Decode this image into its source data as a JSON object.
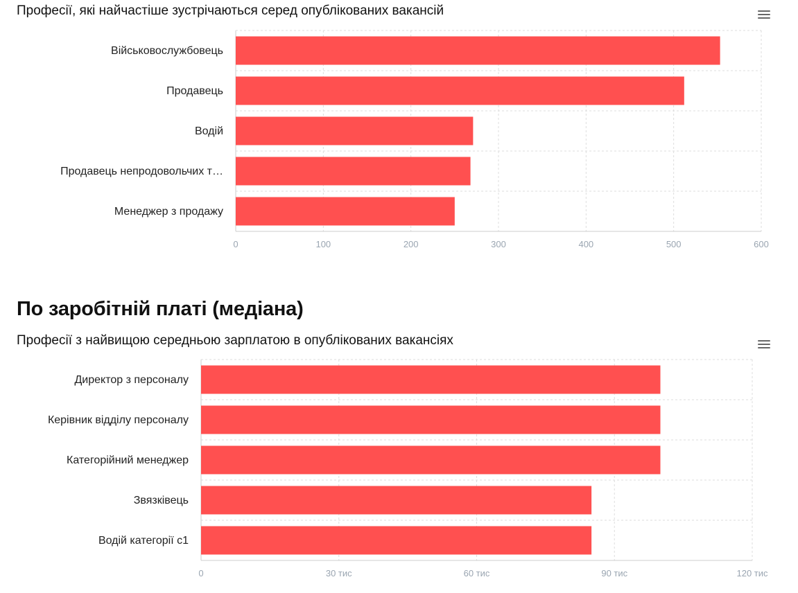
{
  "charts": {
    "occupations": {
      "title": "Професії, які найчастіше зустрічаються серед опублікованих вакансій",
      "menu_icon": "hamburger-menu-icon"
    },
    "salary": {
      "section_heading": "По заробітній платі (медіана)",
      "title": "Професії з найвищою середньою зарплатою в опублікованих вакансіях",
      "menu_icon": "hamburger-menu-icon"
    }
  },
  "colors": {
    "bar": "#FF5050",
    "grid": "#dddddd",
    "tick": "#9aa5b1"
  },
  "chart_data": [
    {
      "type": "bar",
      "orientation": "horizontal",
      "title": "Професії, які найчастіше зустрічаються серед опублікованих вакансій",
      "categories": [
        "Військовослужбовець",
        "Продавець",
        "Водій",
        "Продавець непродовольчих т…",
        "Менеджер з продажу"
      ],
      "values": [
        553,
        512,
        271,
        268,
        250
      ],
      "xlim": [
        0,
        600
      ],
      "ticks": [
        0,
        100,
        200,
        300,
        400,
        500,
        600
      ],
      "tick_labels": [
        "0",
        "100",
        "200",
        "300",
        "400",
        "500",
        "600"
      ],
      "grid": true
    },
    {
      "type": "bar",
      "orientation": "horizontal",
      "title": "Професії з найвищою середньою зарплатою в опублікованих вакансіях",
      "categories": [
        "Директор з персоналу",
        "Керівник відділу персоналу",
        "Категорійний менеджер",
        "Звязківець",
        "Водій категорії с1"
      ],
      "values": [
        100000,
        100000,
        100000,
        85000,
        85000
      ],
      "xlim": [
        0,
        120000
      ],
      "ticks": [
        0,
        30000,
        60000,
        90000,
        120000
      ],
      "tick_labels": [
        "0",
        "30 тис",
        "60 тис",
        "90 тис",
        "120 тис"
      ],
      "grid": true
    }
  ]
}
